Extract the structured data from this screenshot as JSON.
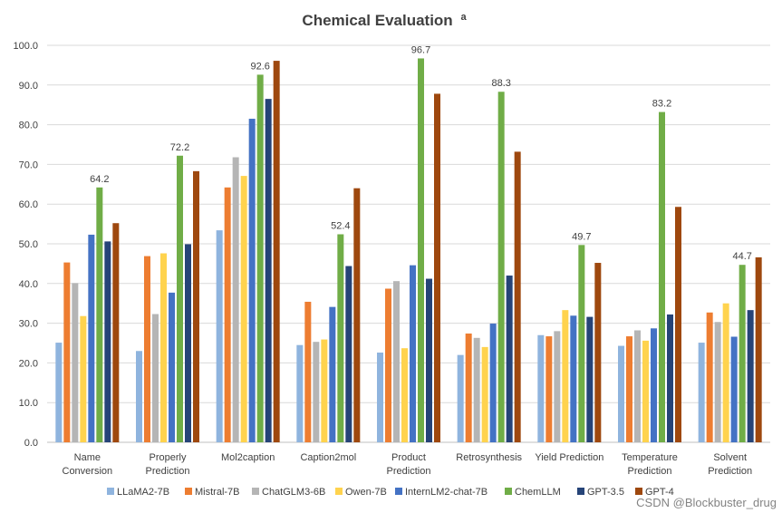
{
  "watermark": "CSDN @Blockbuster_drug",
  "chart_data": {
    "type": "bar",
    "title": "Chemical Evaluation",
    "title_superscript": "a",
    "xlabel": "",
    "ylabel": "",
    "ylim": [
      0,
      100
    ],
    "y_ticks": [
      "0.0",
      "10.0",
      "20.0",
      "30.0",
      "40.0",
      "50.0",
      "60.0",
      "70.0",
      "80.0",
      "90.0",
      "100.0"
    ],
    "grid": true,
    "legend_position": "bottom",
    "categories": [
      [
        "Name",
        "Conversion"
      ],
      [
        "Properly",
        "Prediction"
      ],
      [
        "Mol2caption"
      ],
      [
        "Caption2mol"
      ],
      [
        "Product",
        "Prediction"
      ],
      [
        "Retrosynthesis"
      ],
      [
        "Yield Prediction"
      ],
      [
        "Temperature",
        "Prediction"
      ],
      [
        "Solvent",
        "Prediction"
      ]
    ],
    "series": [
      {
        "name": "LLaMA2-7B",
        "color": "#8fb4de",
        "values": [
          25.1,
          23.0,
          53.4,
          24.5,
          22.6,
          22.0,
          27.0,
          24.3,
          25.1
        ]
      },
      {
        "name": "Mistral-7B",
        "color": "#ed7d31",
        "values": [
          45.3,
          46.9,
          64.2,
          35.4,
          38.7,
          27.4,
          26.7,
          26.7,
          32.7
        ]
      },
      {
        "name": "ChatGLM3-6B",
        "color": "#b5b5b5",
        "values": [
          40.1,
          32.3,
          71.8,
          25.3,
          40.6,
          26.3,
          28.0,
          28.2,
          30.3
        ]
      },
      {
        "name": "Owen-7B",
        "color": "#ffd34e",
        "values": [
          31.8,
          47.6,
          67.1,
          25.9,
          23.7,
          24.0,
          33.3,
          25.6,
          35.0
        ]
      },
      {
        "name": "InternLM2-chat-7B",
        "color": "#4472c4",
        "values": [
          52.3,
          37.7,
          81.5,
          34.1,
          44.6,
          29.9,
          31.9,
          28.7,
          26.6
        ]
      },
      {
        "name": "ChemLLM",
        "color": "#70ad47",
        "values": [
          64.2,
          72.2,
          92.6,
          52.4,
          96.7,
          88.3,
          49.7,
          83.2,
          44.7
        ]
      },
      {
        "name": "GPT-3.5",
        "color": "#264478",
        "values": [
          50.6,
          49.9,
          86.5,
          44.4,
          41.2,
          42.0,
          31.6,
          32.2,
          33.3
        ]
      },
      {
        "name": "GPT-4",
        "color": "#9e480e",
        "values": [
          55.2,
          68.3,
          96.1,
          64.0,
          87.8,
          73.2,
          45.2,
          59.3,
          46.6
        ]
      }
    ],
    "data_labels": {
      "series": "ChemLLM",
      "values": [
        "64.2",
        "72.2",
        "92.6",
        "52.4",
        "96.7",
        "88.3",
        "49.7",
        "83.2",
        "44.7"
      ]
    }
  }
}
